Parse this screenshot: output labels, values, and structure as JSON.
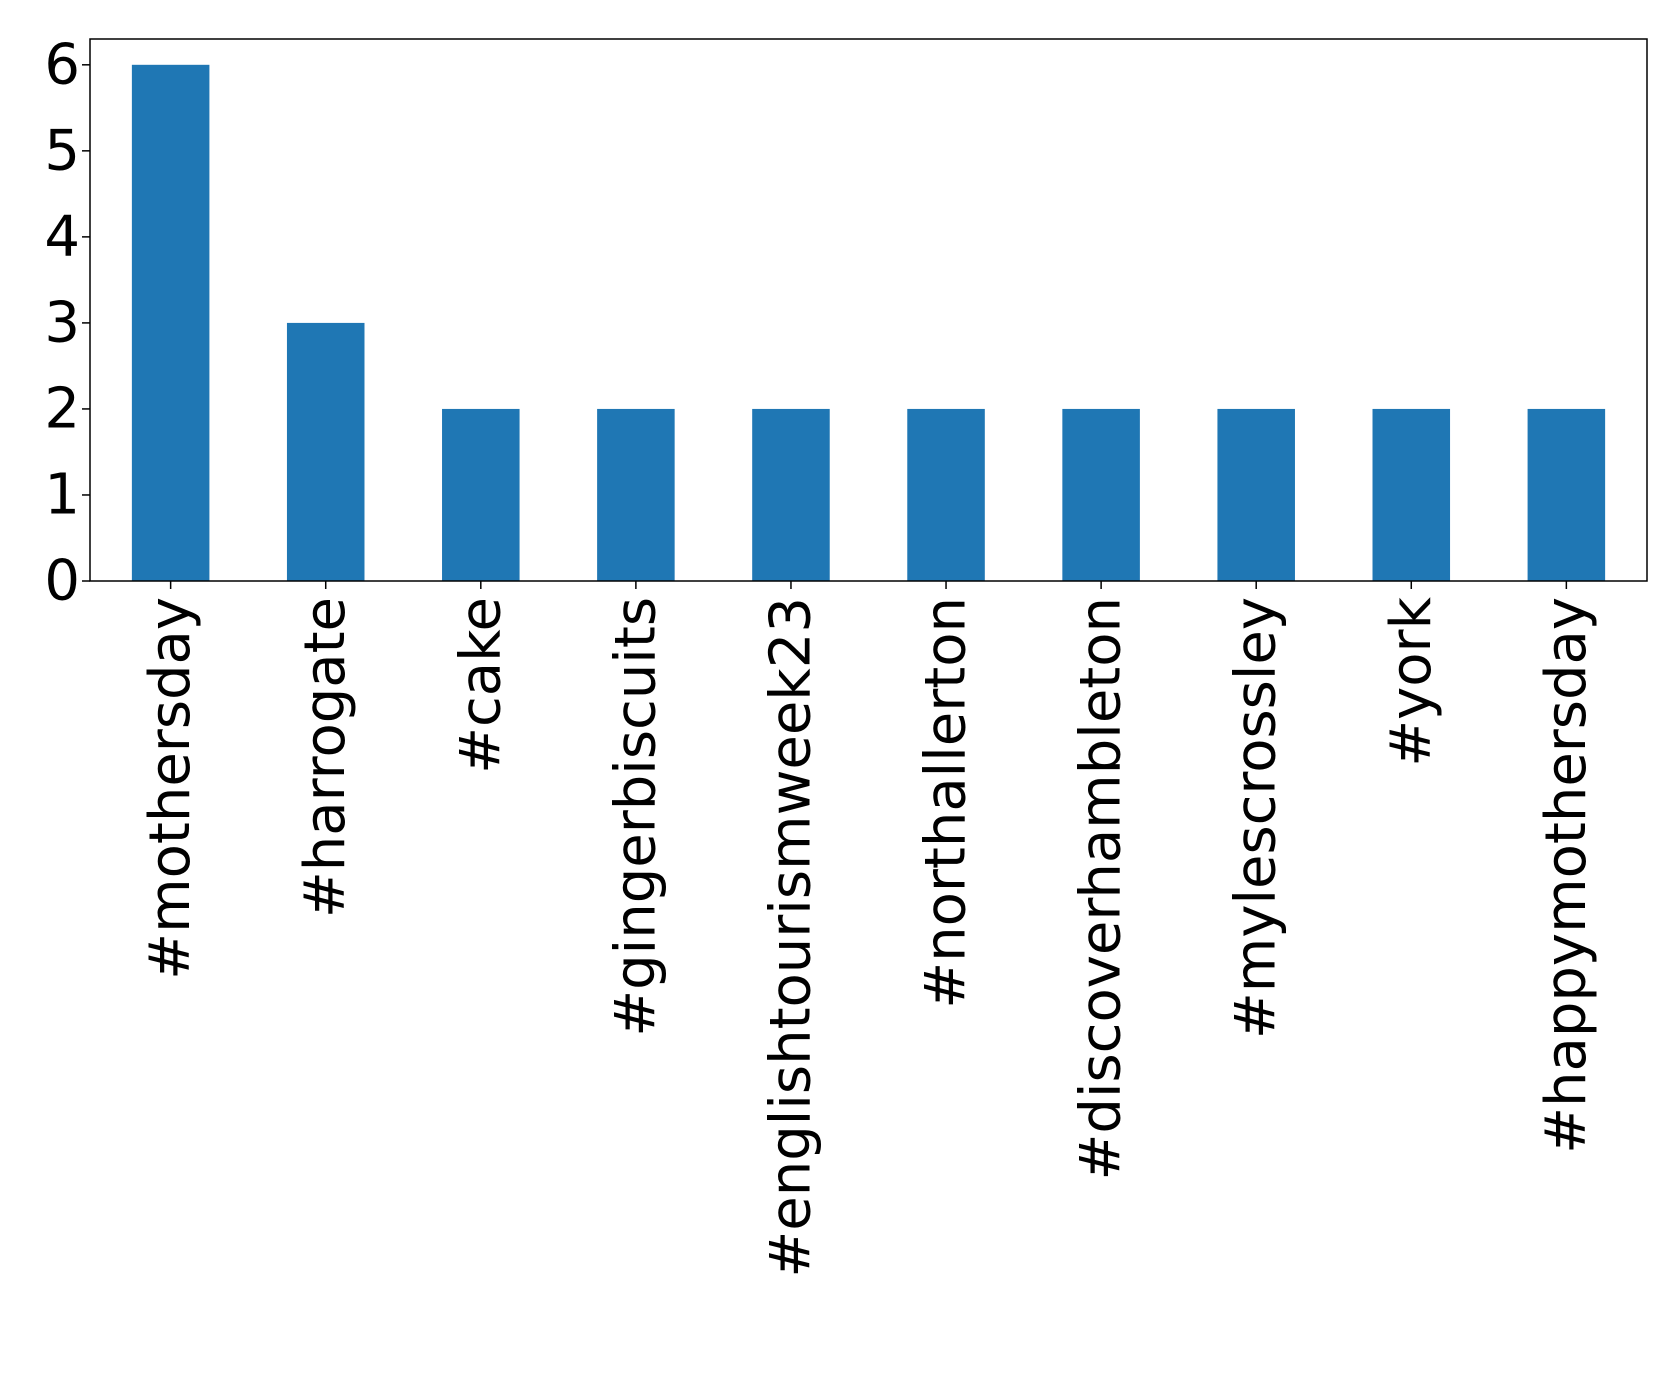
{
  "chart_data": {
    "type": "bar",
    "categories": [
      "#mothersday",
      "#harrogate",
      "#cake",
      "#gingerbiscuits",
      "#englishtourismweek23",
      "#northallerton",
      "#discoverhambleton",
      "#mylescrossley",
      "#york",
      "#happymothersday"
    ],
    "values": [
      6,
      3,
      2,
      2,
      2,
      2,
      2,
      2,
      2,
      2
    ],
    "yticks": [
      "0",
      "1",
      "2",
      "3",
      "4",
      "5",
      "6"
    ],
    "ylim": [
      0,
      6.3
    ],
    "grid": false,
    "bar_color": "#1f77b4"
  }
}
